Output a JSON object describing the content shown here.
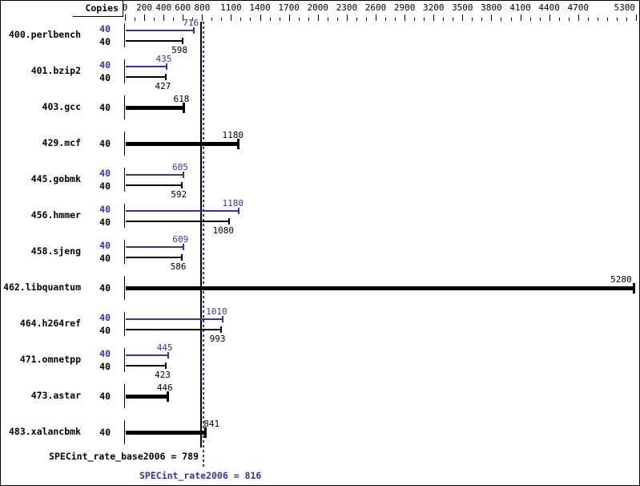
{
  "chart_data": {
    "type": "bar",
    "orientation": "horizontal",
    "copies_column_header": "Copies",
    "xlim": [
      0,
      5300
    ],
    "axis_minor_tick_interval": 100,
    "axis_labeled_ticks": [
      0,
      200,
      400,
      600,
      800,
      1100,
      1400,
      1700,
      2000,
      2300,
      2600,
      2900,
      3200,
      3500,
      3800,
      4100,
      4400,
      4700,
      5300
    ],
    "legend_note": "blue bars = peak (SPECint_rate2006), black bars = base (SPECint_rate_base2006); single thick black bar when only one value shown",
    "categories": [
      "400.perlbench",
      "401.bzip2",
      "403.gcc",
      "429.mcf",
      "445.gobmk",
      "456.hmmer",
      "458.sjeng",
      "462.libquantum",
      "464.h264ref",
      "471.omnetpp",
      "473.astar",
      "483.xalancbmk"
    ],
    "rows": [
      {
        "benchmark": "400.perlbench",
        "copies": 40,
        "peak": 716,
        "base": 598
      },
      {
        "benchmark": "401.bzip2",
        "copies": 40,
        "peak": 435,
        "base": 427
      },
      {
        "benchmark": "403.gcc",
        "copies": 40,
        "peak": null,
        "base": 618
      },
      {
        "benchmark": "429.mcf",
        "copies": 40,
        "peak": null,
        "base": 1180
      },
      {
        "benchmark": "445.gobmk",
        "copies": 40,
        "peak": 605,
        "base": 592
      },
      {
        "benchmark": "456.hmmer",
        "copies": 40,
        "peak": 1180,
        "base": 1080
      },
      {
        "benchmark": "458.sjeng",
        "copies": 40,
        "peak": 609,
        "base": 586
      },
      {
        "benchmark": "462.libquantum",
        "copies": 40,
        "peak": null,
        "base": 5280
      },
      {
        "benchmark": "464.h264ref",
        "copies": 40,
        "peak": 1010,
        "base": 993
      },
      {
        "benchmark": "471.omnetpp",
        "copies": 40,
        "peak": 445,
        "base": 423
      },
      {
        "benchmark": "473.astar",
        "copies": 40,
        "peak": null,
        "base": 446
      },
      {
        "benchmark": "483.xalancbmk",
        "copies": 40,
        "peak": null,
        "base": 841
      }
    ],
    "reference_lines": {
      "base_value": 789,
      "peak_value": 816
    },
    "summary": {
      "base_metric": "SPECint_rate_base2006",
      "base_value": 789,
      "base_text": "SPECint_rate_base2006 = 789",
      "peak_metric": "SPECint_rate2006",
      "peak_value": 816,
      "peak_text": "SPECint_rate2006 = 816"
    },
    "colors": {
      "peak_blue": "#3333aa",
      "base_black": "#000000",
      "background": "#ffffff"
    }
  }
}
